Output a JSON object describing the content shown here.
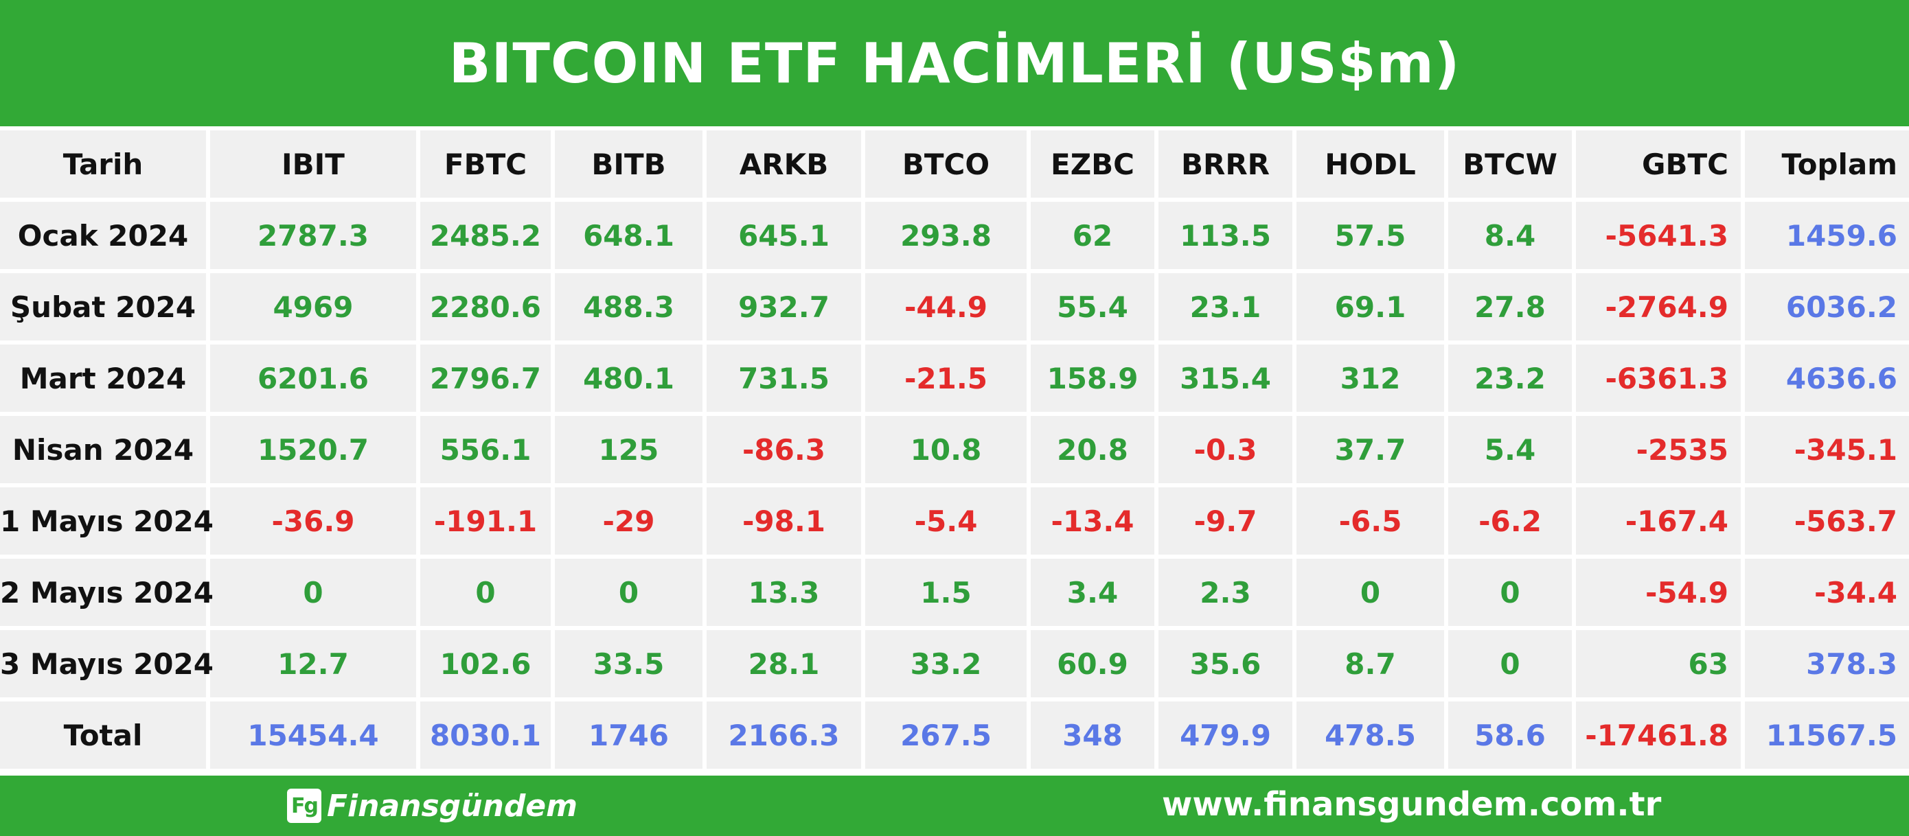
{
  "title": "BITCOIN ETF HACİMLERİ (US$m)",
  "footer": {
    "logo_mark": "Fg",
    "brand": "Finansgündem",
    "url": "www.finansgundem.com.tr"
  },
  "colors": {
    "header_green": "#32a936",
    "positive": "#2f9e3a",
    "negative": "#e42b2b",
    "total_blue": "#5a78e6",
    "cell_bg": "#f0f0f0"
  },
  "chart_data": {
    "type": "table",
    "title": "BITCOIN ETF HACİMLERİ (US$m)",
    "columns": [
      "Tarih",
      "IBIT",
      "FBTC",
      "BITB",
      "ARKB",
      "BTCO",
      "EZBC",
      "BRRR",
      "HODL",
      "BTCW",
      "GBTC",
      "Toplam"
    ],
    "rows": [
      [
        "Ocak 2024",
        "2787.3",
        "2485.2",
        "648.1",
        "645.1",
        "293.8",
        "62",
        "113.5",
        "57.5",
        "8.4",
        "-5641.3",
        "1459.6"
      ],
      [
        "Şubat 2024",
        "4969",
        "2280.6",
        "488.3",
        "932.7",
        "-44.9",
        "55.4",
        "23.1",
        "69.1",
        "27.8",
        "-2764.9",
        "6036.2"
      ],
      [
        "Mart 2024",
        "6201.6",
        "2796.7",
        "480.1",
        "731.5",
        "-21.5",
        "158.9",
        "315.4",
        "312",
        "23.2",
        "-6361.3",
        "4636.6"
      ],
      [
        "Nisan 2024",
        "1520.7",
        "556.1",
        "125",
        "-86.3",
        "10.8",
        "20.8",
        "-0.3",
        "37.7",
        "5.4",
        "-2535",
        "-345.1"
      ],
      [
        "1 Mayıs 2024",
        "-36.9",
        "-191.1",
        "-29",
        "-98.1",
        "-5.4",
        "-13.4",
        "-9.7",
        "-6.5",
        "-6.2",
        "-167.4",
        "-563.7"
      ],
      [
        "2 Mayıs 2024",
        "0",
        "0",
        "0",
        "13.3",
        "1.5",
        "3.4",
        "2.3",
        "0",
        "0",
        "-54.9",
        "-34.4"
      ],
      [
        "3 Mayıs 2024",
        "12.7",
        "102.6",
        "33.5",
        "28.1",
        "33.2",
        "60.9",
        "35.6",
        "8.7",
        "0",
        "63",
        "378.3"
      ]
    ],
    "total_row": [
      "Total",
      "15454.4",
      "8030.1",
      "1746",
      "2166.3",
      "267.5",
      "348",
      "479.9",
      "478.5",
      "58.6",
      "-17461.8",
      "11567.5"
    ]
  }
}
